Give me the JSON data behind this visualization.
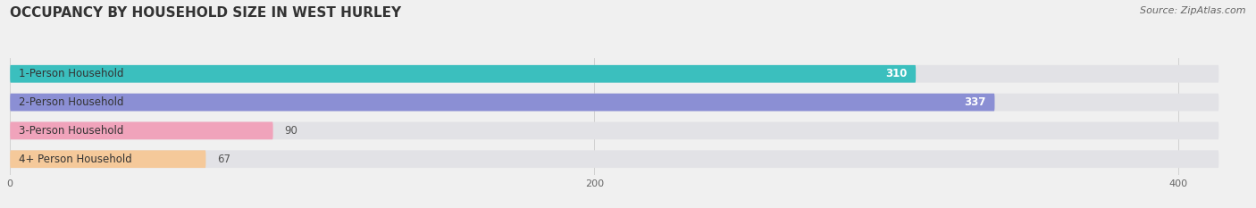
{
  "title": "OCCUPANCY BY HOUSEHOLD SIZE IN WEST HURLEY",
  "source": "Source: ZipAtlas.com",
  "categories": [
    "1-Person Household",
    "2-Person Household",
    "3-Person Household",
    "4+ Person Household"
  ],
  "values": [
    310,
    337,
    90,
    67
  ],
  "bar_colors": [
    "#3bbfbe",
    "#8b8fd4",
    "#f0a3bb",
    "#f5c99a"
  ],
  "label_colors": [
    "#ffffff",
    "#ffffff",
    "#555555",
    "#555555"
  ],
  "xlim_max": 420,
  "xticks": [
    0,
    200,
    400
  ],
  "background_color": "#f0f0f0",
  "bar_bg_color": "#e2e2e6",
  "title_fontsize": 11,
  "source_fontsize": 8,
  "label_fontsize": 8.5,
  "value_fontsize": 8.5,
  "bar_height": 0.62
}
